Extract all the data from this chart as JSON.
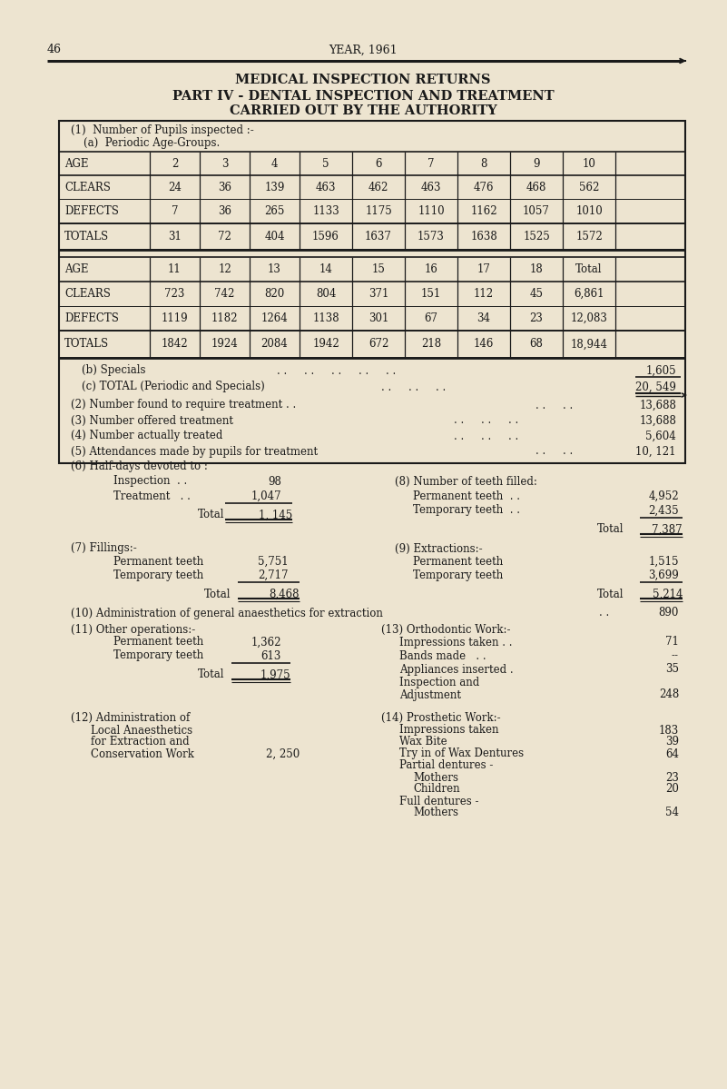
{
  "bg_color": "#ede4d0",
  "page_num": "46",
  "year": "YEAR, 1961",
  "title1": "MEDICAL INSPECTION RETURNS",
  "title2": "PART IV - DENTAL INSPECTION AND TREATMENT",
  "title3": "CARRIED OUT BY THE AUTHORITY",
  "ages1": [
    "AGE",
    "2",
    "3",
    "4",
    "5",
    "6",
    "7",
    "8",
    "9",
    "10",
    ""
  ],
  "clears1": [
    "CLEARS",
    "24",
    "36",
    "139",
    "463",
    "462",
    "463",
    "476",
    "468",
    "562",
    ""
  ],
  "defects1": [
    "DEFECTS",
    "7",
    "36",
    "265",
    "1133",
    "1175",
    "1110",
    "1162",
    "1057",
    "1010",
    ""
  ],
  "totals1": [
    "TOTALS",
    "31",
    "72",
    "404",
    "1596",
    "1637",
    "1573",
    "1638",
    "1525",
    "1572",
    ""
  ],
  "ages2": [
    "AGE",
    "11",
    "12",
    "13",
    "14",
    "15",
    "16",
    "17",
    "18",
    "Total"
  ],
  "clears2": [
    "CLEARS",
    "723",
    "742",
    "820",
    "804",
    "371",
    "151",
    "112",
    "45",
    "6,861"
  ],
  "defects2": [
    "DEFECTS",
    "1119",
    "1182",
    "1264",
    "1138",
    "301",
    "67",
    "34",
    "23",
    "12,083"
  ],
  "totals2": [
    "TOTALS",
    "1842",
    "1924",
    "2084",
    "1942",
    "672",
    "218",
    "146",
    "68",
    "18,944"
  ],
  "specials_val": "1,605",
  "total_val": "20, 549",
  "item2_val": "13,688",
  "item3_val": "13,688",
  "item4_val": "5,604",
  "item5_val": "10, 121",
  "inspection_val": "98",
  "treatment_val": "1,047",
  "halfdays_total_val": "1, 145",
  "perm_filled_val": "4,952",
  "temp_filled_val": "2,435",
  "filled_total_val": "7,387",
  "fillings_perm_val": "5,751",
  "fillings_temp_val": "2,717",
  "fillings_total_val": "8,468",
  "extr_perm_val": "1,515",
  "extr_temp_val": "3,699",
  "extr_total_val": "5,214",
  "item10_val": "890",
  "item11_perm_val": "1,362",
  "item11_temp_val": "613",
  "item11_total_val": "1,975",
  "item12_val": "2, 250",
  "item13_impressions_val": "71",
  "item13_bands_val": "--",
  "item13_appliances_val": "35",
  "item13_adjustment_val": "248",
  "item14_impressions_val": "183",
  "item14_wax_val": "39",
  "item14_tryin_val": "64",
  "item14_mothers_val": "23",
  "item14_children_val": "20",
  "item14_fullmothers_val": "54"
}
